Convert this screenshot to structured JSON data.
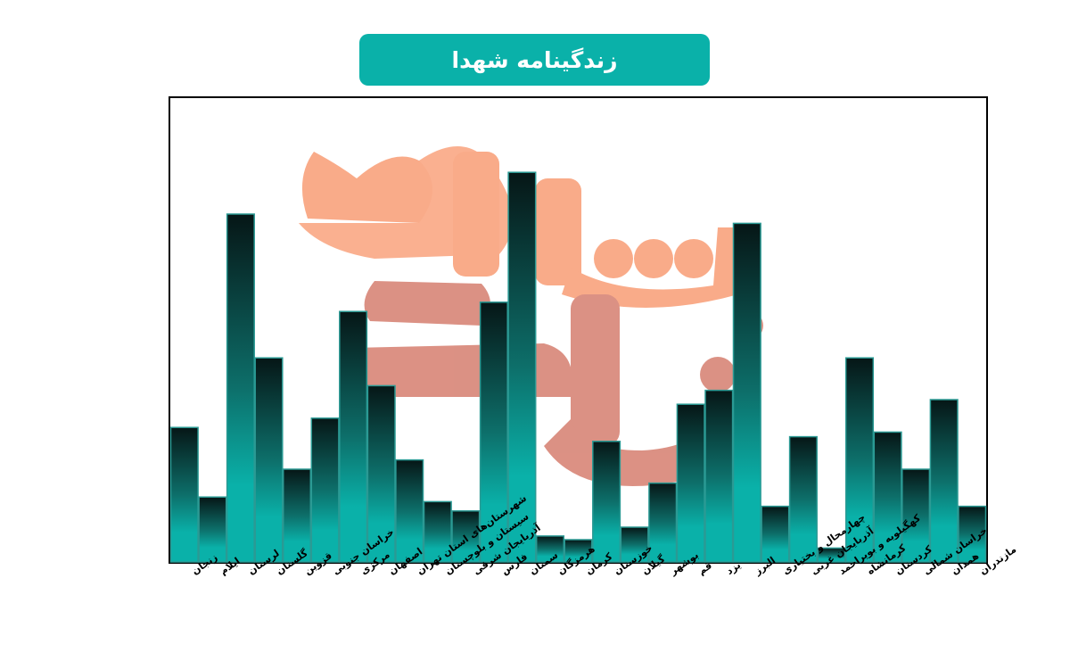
{
  "header": {
    "title": "زندگینامه شهدا"
  },
  "watermark": {
    "text": "شاهد نوجوان",
    "colors": [
      "#f9a47f",
      "#d9887a"
    ]
  },
  "colors": {
    "title_bg": "#0ab1a9",
    "bar_bottom": "#0ab1a9",
    "bar_top": "#061616",
    "axis": "#000000"
  },
  "chart_data": {
    "type": "bar",
    "title": "",
    "xlabel": "",
    "ylabel": "",
    "grid": false,
    "ylim": [
      0,
      100
    ],
    "categories": [
      "زنجان",
      "ایلام",
      "لرستان",
      "گلستان",
      "قزوین",
      "خراسان جنوبی",
      "مرکزی",
      "اصفهان",
      "شهرستان‌های استان تهران",
      "سیستان و بلوچستان",
      "آذربایجان شرقی",
      "فارس",
      "سمنان",
      "هرمزگان",
      "کرمان",
      "خوزستان",
      "گیلان",
      "بوشهر",
      "قم",
      "یزد",
      "البرز",
      "چهارمحال و بختیاری",
      "آذربایجان غربی",
      "کهگیلویه و بویراحمد",
      "کرمانشاه",
      "کردستان",
      "خراسان شمالی",
      "همدان",
      "مازندران"
    ],
    "values": [
      29,
      14,
      75,
      44,
      20,
      31,
      54,
      38,
      22,
      13,
      11,
      56,
      84,
      5.6,
      4.8,
      26,
      7.5,
      17,
      34,
      37,
      73,
      12,
      27,
      3,
      44,
      28,
      20,
      35,
      12
    ]
  }
}
